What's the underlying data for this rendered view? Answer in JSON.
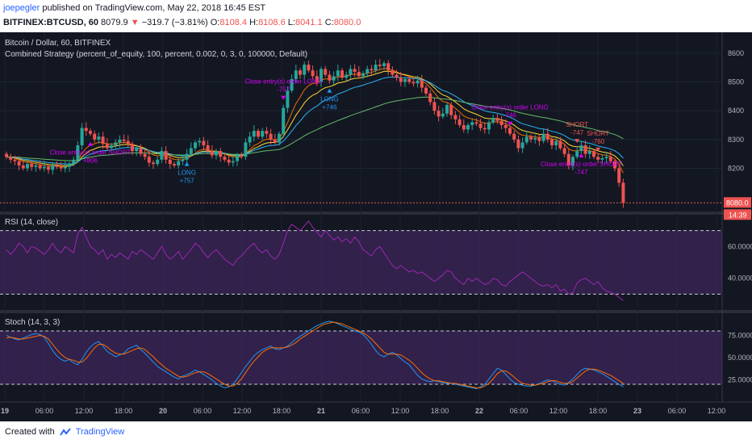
{
  "header": {
    "author": "joepegler",
    "published": "published on TradingView.com, May 22, 2018 16:45 EST",
    "symbol": "BITFINEX:BTCUSD, 60",
    "last": "8079.9",
    "change": "−319.7 (−3.81%)",
    "open_label": "O:",
    "open": "8108.4",
    "high_label": "H:",
    "high": "8108.6",
    "low_label": "L:",
    "low": "8041.1",
    "close_label": "C:",
    "close": "8080.0"
  },
  "main_pane": {
    "title": "Bitcoin / Dollar, 60, BITFINEX",
    "strategy": "Combined Strategy (percent_of_equity, 100, percent, 0.002, 0, 3, 0, 100000, Default)",
    "price_label": "8080.0",
    "countdown": "14:39"
  },
  "rsi_pane": {
    "title": "RSI (14, close)"
  },
  "stoch_pane": {
    "title": "Stoch (14, 3, 3)"
  },
  "footer": {
    "created": "Created with",
    "brand": "TradingView"
  },
  "colors": {
    "background": "#131722",
    "bull": "#26a69a",
    "bear": "#ef5350",
    "rsi": "#9c27b0",
    "stoch_k": "#2196f3",
    "stoch_d": "#ff6d00",
    "band": "#4a2a6e",
    "trade_long": "#2196f3",
    "trade_short": "#d500f9"
  },
  "chart_data": [
    {
      "type": "candlestick",
      "title": "Bitcoin / Dollar, 60, BITFINEX",
      "y_ticks": [
        8200,
        8300,
        8400,
        8500,
        8600
      ],
      "ylim": [
        8050,
        8650
      ],
      "x_ticks": [
        "19",
        "06:00",
        "12:00",
        "18:00",
        "20",
        "06:00",
        "12:00",
        "18:00",
        "21",
        "06:00",
        "12:00",
        "18:00",
        "22",
        "06:00",
        "12:00",
        "18:00",
        "23",
        "06:00",
        "12:00"
      ],
      "closes": [
        8240,
        8230,
        8225,
        8210,
        8200,
        8215,
        8205,
        8210,
        8200,
        8205,
        8195,
        8210,
        8205,
        8200,
        8205,
        8215,
        8230,
        8280,
        8340,
        8330,
        8320,
        8300,
        8310,
        8285,
        8270,
        8280,
        8290,
        8300,
        8295,
        8285,
        8260,
        8270,
        8250,
        8240,
        8220,
        8215,
        8230,
        8260,
        8230,
        8215,
        8210,
        8225,
        8230,
        8250,
        8270,
        8290,
        8295,
        8280,
        8260,
        8245,
        8260,
        8240,
        8230,
        8220,
        8225,
        8245,
        8240,
        8290,
        8310,
        8330,
        8310,
        8330,
        8320,
        8300,
        8290,
        8320,
        8410,
        8470,
        8510,
        8540,
        8525,
        8560,
        8540,
        8520,
        8500,
        8545,
        8525,
        8505,
        8520,
        8540,
        8515,
        8525,
        8545,
        8535,
        8520,
        8530,
        8545,
        8540,
        8560,
        8555,
        8565,
        8540,
        8525,
        8515,
        8500,
        8510,
        8500,
        8495,
        8505,
        8480,
        8460,
        8430,
        8400,
        8380,
        8390,
        8420,
        8385,
        8370,
        8350,
        8335,
        8350,
        8360,
        8355,
        8340,
        8335,
        8360,
        8375,
        8365,
        8350,
        8340,
        8320,
        8300,
        8270,
        8290,
        8310,
        8300,
        8305,
        8295,
        8320,
        8300,
        8280,
        8295,
        8270,
        8250,
        8210,
        8240,
        8260,
        8280,
        8250,
        8260,
        8240,
        8230,
        8235,
        8240,
        8225,
        8200,
        8150,
        8080
      ],
      "indicators": [
        "EMA 8",
        "EMA 13",
        "EMA 21",
        "EMA 55"
      ],
      "trades": [
        {
          "label": "Close entry(s) order SHORT",
          "value": "+806",
          "x_index": 20
        },
        {
          "label": "LONG",
          "value": "+757",
          "x_index": 43
        },
        {
          "label": "Close entry(s) order LONG",
          "value": "-757",
          "x_index": 66
        },
        {
          "label": "LONG",
          "value": "+746",
          "x_index": 77
        },
        {
          "label": "Close entry(s) order LONG",
          "value": "-746",
          "x_index": 120
        },
        {
          "label": "SHORT",
          "value": "-747",
          "x_index": 136
        },
        {
          "label": "SHORT",
          "value": "-760",
          "x_index": 141
        },
        {
          "label": "Close entry(s) order SHORT",
          "value": "-747",
          "x_index": 137
        }
      ]
    },
    {
      "type": "line",
      "title": "RSI (14, close)",
      "y_ticks": [
        40,
        60
      ],
      "bands": [
        30,
        70
      ],
      "ylim": [
        20,
        80
      ],
      "values": [
        58,
        55,
        58,
        62,
        60,
        56,
        60,
        59,
        57,
        55,
        58,
        62,
        58,
        56,
        60,
        58,
        56,
        68,
        72,
        66,
        60,
        58,
        55,
        58,
        52,
        55,
        53,
        56,
        54,
        52,
        57,
        55,
        58,
        56,
        54,
        52,
        56,
        60,
        55,
        52,
        54,
        57,
        52,
        55,
        58,
        62,
        60,
        56,
        53,
        56,
        58,
        55,
        52,
        50,
        48,
        52,
        54,
        57,
        60,
        62,
        58,
        56,
        58,
        54,
        52,
        55,
        62,
        70,
        74,
        72,
        70,
        73,
        76,
        72,
        69,
        66,
        70,
        67,
        64,
        66,
        63,
        65,
        62,
        66,
        63,
        58,
        56,
        54,
        58,
        60,
        56,
        52,
        48,
        46,
        48,
        46,
        44,
        45,
        43,
        44,
        42,
        40,
        38,
        40,
        42,
        45,
        44,
        40,
        38,
        36,
        40,
        38,
        40,
        38,
        36,
        37,
        40,
        39,
        36,
        35,
        38,
        40,
        42,
        44,
        42,
        40,
        38,
        36,
        35,
        36,
        34,
        36,
        32,
        33,
        30,
        31,
        37,
        39,
        40,
        38,
        36,
        38,
        34,
        32,
        31,
        30,
        28,
        26
      ]
    },
    {
      "type": "line",
      "title": "Stoch (14, 3, 3)",
      "y_ticks": [
        25,
        50,
        75
      ],
      "bands": [
        20,
        80
      ],
      "ylim": [
        0,
        100
      ],
      "series": [
        {
          "values": [
            75,
            73,
            71,
            70,
            72,
            74,
            76,
            77,
            76,
            73,
            66,
            58,
            52,
            48,
            46,
            48,
            44,
            42,
            48,
            56,
            62,
            66,
            68,
            63,
            57,
            54,
            51,
            53,
            55,
            60,
            62,
            64,
            59,
            55,
            50,
            45,
            40,
            37,
            34,
            31,
            28,
            26,
            29,
            31,
            33,
            36,
            34,
            31,
            28,
            25,
            21,
            18,
            16,
            17,
            20,
            26,
            33,
            40,
            46,
            52,
            56,
            59,
            61,
            63,
            60,
            59,
            61,
            63,
            67,
            71,
            74,
            77,
            80,
            83,
            86,
            88,
            90,
            91,
            90,
            88,
            86,
            84,
            82,
            80,
            79,
            76,
            71,
            65,
            58,
            53,
            51,
            54,
            56,
            53,
            49,
            45,
            42,
            36,
            30,
            26,
            24,
            23,
            24,
            23,
            22,
            21,
            21,
            20,
            19,
            18,
            17,
            16,
            15,
            17,
            20,
            26,
            32,
            38,
            36,
            31,
            26,
            22,
            20,
            19,
            18,
            18,
            19,
            21,
            23,
            25,
            24,
            22,
            20,
            19,
            22,
            26,
            31,
            36,
            38,
            37,
            36,
            34,
            32,
            29,
            26,
            23,
            20,
            17
          ]
        },
        {
          "values": [
            72,
            73,
            72,
            71,
            71,
            72,
            73,
            74,
            75,
            74,
            71,
            65,
            59,
            54,
            50,
            48,
            47,
            45,
            45,
            49,
            55,
            61,
            65,
            65,
            62,
            58,
            55,
            54,
            54,
            56,
            58,
            60,
            61,
            59,
            55,
            51,
            46,
            42,
            38,
            35,
            32,
            29,
            28,
            29,
            31,
            33,
            34,
            34,
            32,
            29,
            26,
            23,
            20,
            18,
            18,
            21,
            26,
            33,
            40,
            46,
            51,
            56,
            59,
            61,
            61,
            61,
            61,
            62,
            64,
            67,
            71,
            74,
            77,
            80,
            83,
            86,
            88,
            89,
            90,
            89,
            88,
            86,
            84,
            82,
            80,
            78,
            75,
            71,
            66,
            61,
            56,
            54,
            54,
            54,
            53,
            50,
            47,
            43,
            38,
            33,
            29,
            26,
            24,
            24,
            23,
            22,
            21,
            21,
            20,
            19,
            18,
            17,
            16,
            16,
            18,
            21,
            26,
            32,
            35,
            35,
            32,
            28,
            24,
            21,
            20,
            19,
            19,
            20,
            21,
            23,
            24,
            24,
            22,
            21,
            21,
            23,
            27,
            31,
            35,
            37,
            37,
            36,
            34,
            32,
            30,
            27,
            24,
            21
          ]
        }
      ]
    }
  ]
}
